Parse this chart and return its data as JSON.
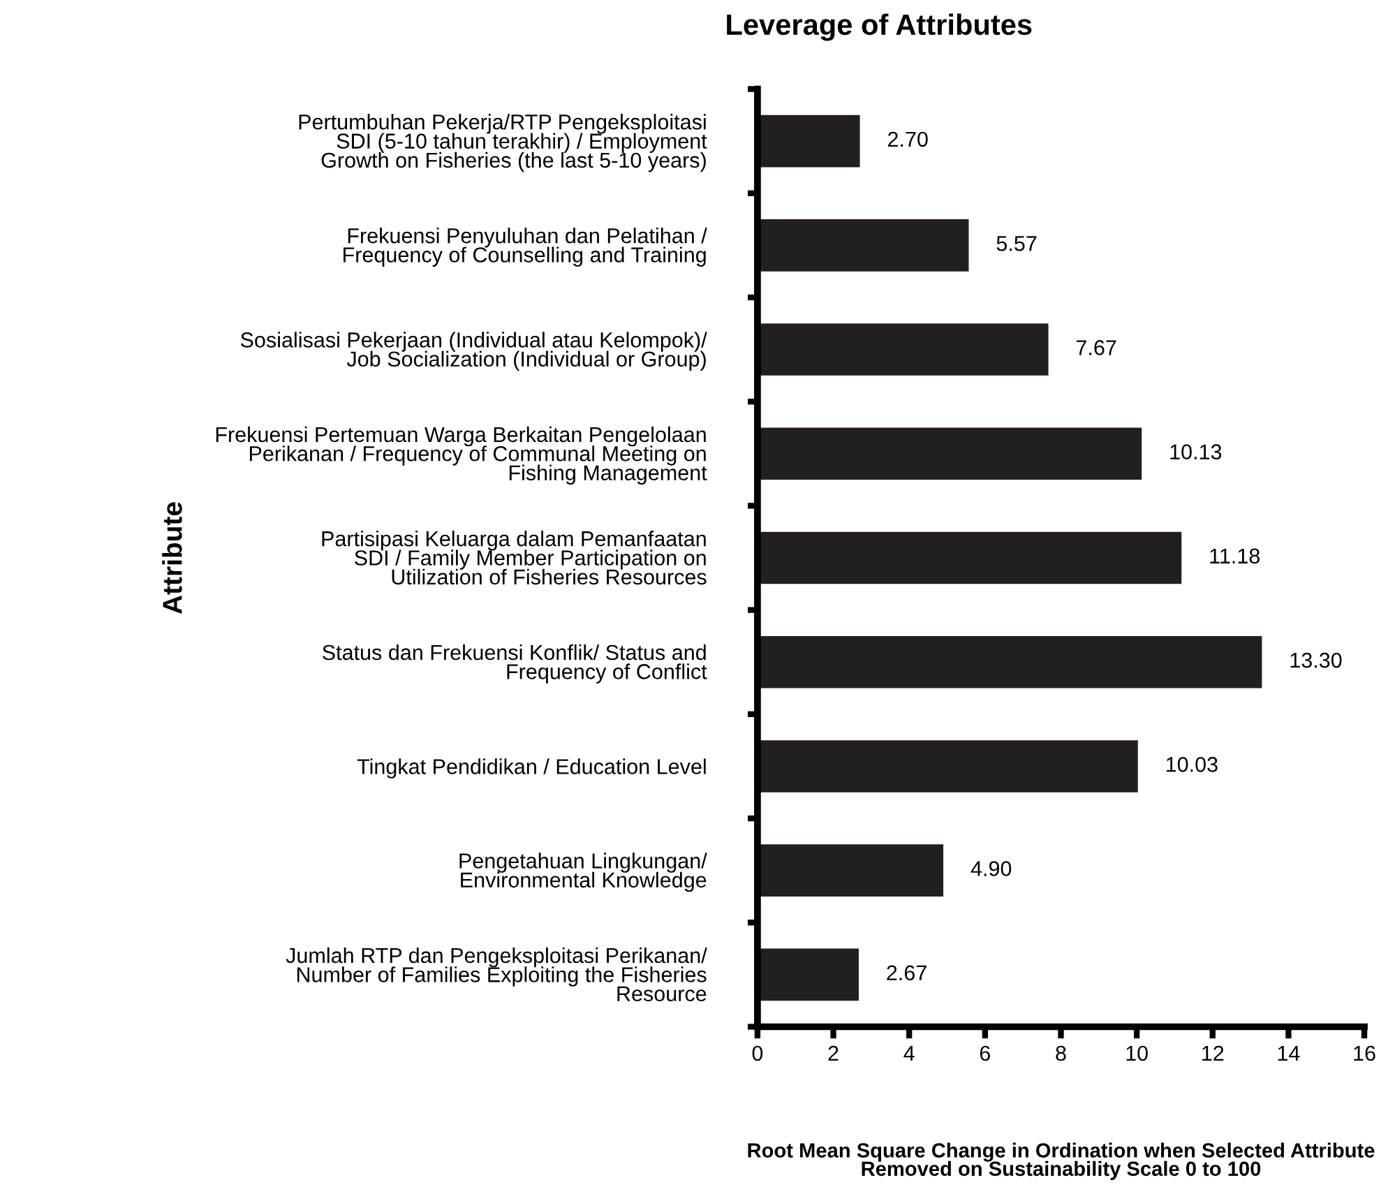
{
  "chart_data": {
    "type": "bar",
    "orientation": "horizontal",
    "title": "Leverage of Attributes",
    "xlabel": "Root Mean Square Change in Ordination when Selected Attribute\nRemoved on Sustainability Scale 0 to 100",
    "ylabel": "Attribute",
    "categories": [
      "Pertumbuhan Pekerja/RTP Pengeksploitasi\nSDI (5-10 tahun terakhir) / Employment\nGrowth on Fisheries (the last 5-10 years)",
      "Frekuensi Penyuluhan dan Pelatihan /\nFrequency of Counselling and Training",
      "Sosialisasi Pekerjaan (Individual atau Kelompok)/\nJob Socialization (Individual or Group)",
      "Frekuensi Pertemuan Warga Berkaitan Pengelolaan\nPerikanan / Frequency of Communal Meeting on\nFishing Management",
      "Partisipasi Keluarga dalam Pemanfaatan\nSDI / Family Member Participation on\nUtilization of Fisheries Resources",
      "Status dan Frekuensi Konflik/ Status and\nFrequency of Conflict",
      "Tingkat Pendidikan / Education Level",
      "Pengetahuan Lingkungan/\nEnvironmental Knowledge",
      "Jumlah RTP dan Pengeksploitasi Perikanan/\nNumber of Families Exploiting the Fisheries\nResource"
    ],
    "values": [
      2.7,
      5.57,
      7.67,
      10.13,
      11.18,
      13.3,
      10.03,
      4.9,
      2.67
    ],
    "value_labels": [
      "2.70",
      "5.57",
      "7.67",
      "10.13",
      "11.18",
      "13.30",
      "10.03",
      "4.90",
      "2.67"
    ],
    "color": "#231f20",
    "xlim": [
      0,
      16
    ],
    "xticks": [
      0,
      2,
      4,
      6,
      8,
      10,
      12,
      14,
      16
    ],
    "grid": false,
    "legend": false
  }
}
